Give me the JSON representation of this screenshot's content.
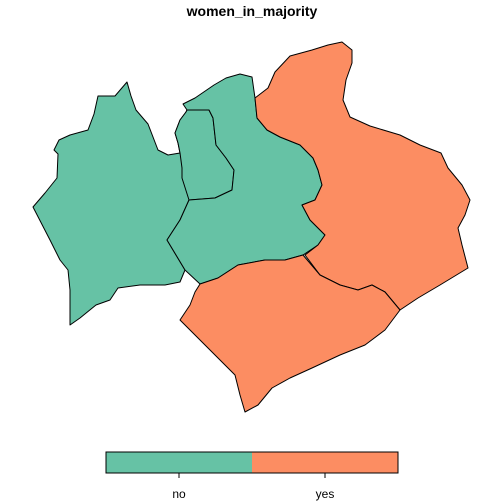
{
  "title": "women_in_majority",
  "map_data": {
    "variable": "women_in_majority",
    "categories": [
      {
        "label": "no",
        "color": "#66C2A5"
      },
      {
        "label": "yes",
        "color": "#FC8D62"
      }
    ],
    "regions": [
      {
        "id": "west",
        "category": "no"
      },
      {
        "id": "center-north",
        "category": "no"
      },
      {
        "id": "center",
        "category": "no"
      },
      {
        "id": "east",
        "category": "yes"
      },
      {
        "id": "south",
        "category": "yes"
      }
    ]
  }
}
